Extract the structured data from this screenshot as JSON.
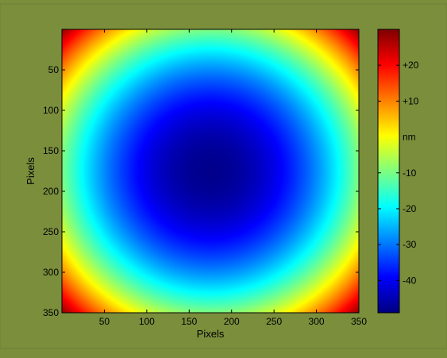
{
  "chart_data": {
    "type": "heatmap",
    "title": "",
    "xlabel": "Pixels",
    "ylabel": "Pixels",
    "xlim": [
      0,
      350
    ],
    "ylim": [
      0,
      350
    ],
    "y_axis_inverted": true,
    "x_ticks": [
      50,
      100,
      150,
      200,
      250,
      300,
      350
    ],
    "y_ticks": [
      50,
      100,
      150,
      200,
      250,
      300,
      350
    ],
    "surface": {
      "shape": "radial bowl",
      "minimum_at": [
        175,
        175
      ],
      "minimum_value": -48,
      "corner_value": 29
    },
    "colormap": "jet",
    "colorbar": {
      "label": "nm",
      "label_value": 0,
      "range": [
        -49,
        30
      ],
      "ticks": [
        {
          "value": 20,
          "label": "+20"
        },
        {
          "value": 10,
          "label": "+10"
        },
        {
          "value": -10,
          "label": "-10"
        },
        {
          "value": -20,
          "label": "-20"
        },
        {
          "value": -30,
          "label": "-30"
        },
        {
          "value": -40,
          "label": "-40"
        }
      ]
    },
    "grid": false
  }
}
